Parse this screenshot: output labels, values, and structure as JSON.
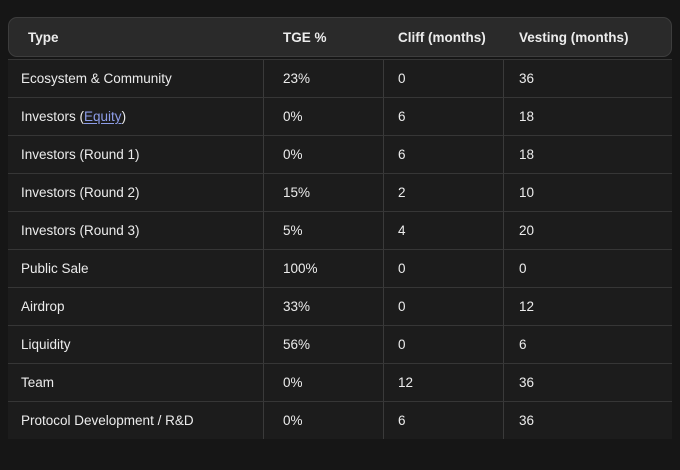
{
  "colors": {
    "page-bg": "#161616",
    "header-bg": "#2a2a2a",
    "header-border": "#3d3d3d",
    "row-bg": "#1c1c1c",
    "divider": "#363636",
    "vdivider": "#3a3a3a",
    "text": "#ececec",
    "link": "#8d9de8"
  },
  "table": {
    "columns": [
      "Type",
      "TGE %",
      "Cliff (months)",
      "Vesting (months)"
    ],
    "rows": [
      {
        "type": "Ecosystem & Community",
        "tge": "23%",
        "cliff": "0",
        "vesting": "36"
      },
      {
        "type_prefix": "Investors (",
        "link_text": "Equity",
        "type_suffix": ")",
        "tge": "0%",
        "cliff": "6",
        "vesting": "18"
      },
      {
        "type": "Investors (Round 1)",
        "tge": "0%",
        "cliff": "6",
        "vesting": "18"
      },
      {
        "type": "Investors (Round 2)",
        "tge": "15%",
        "cliff": "2",
        "vesting": "10"
      },
      {
        "type": "Investors (Round 3)",
        "tge": "5%",
        "cliff": "4",
        "vesting": "20"
      },
      {
        "type": "Public Sale",
        "tge": "100%",
        "cliff": "0",
        "vesting": "0"
      },
      {
        "type": "Airdrop",
        "tge": "33%",
        "cliff": "0",
        "vesting": "12"
      },
      {
        "type": "Liquidity",
        "tge": "56%",
        "cliff": "0",
        "vesting": "6"
      },
      {
        "type": "Team",
        "tge": "0%",
        "cliff": "12",
        "vesting": "36"
      },
      {
        "type": "Protocol Development / R&D",
        "tge": "0%",
        "cliff": "6",
        "vesting": "36"
      }
    ]
  }
}
